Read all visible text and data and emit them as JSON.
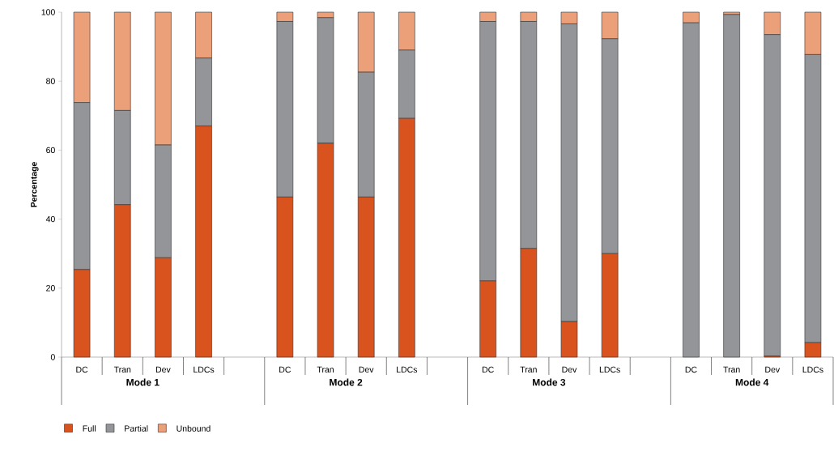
{
  "chart_data": {
    "type": "bar",
    "stacked": true,
    "ylabel": "Percentage",
    "categories": [
      "DC",
      "Tran",
      "Dev",
      "LDCs",
      null,
      "DC",
      "Tran",
      "Dev",
      "LDCs",
      null,
      "DC",
      "Tran",
      "Dev",
      "LDCs",
      null,
      "DC",
      "Tran",
      "Dev",
      "LDCs"
    ],
    "series": [
      {
        "name": "Full",
        "color": "#d9531e",
        "values": [
          25.4,
          44.2,
          28.8,
          67.0,
          null,
          46.4,
          62.0,
          46.4,
          69.2,
          null,
          22.1,
          31.5,
          10.3,
          30.0,
          null,
          0,
          0,
          0.3,
          4.2
        ]
      },
      {
        "name": "Partial",
        "color": "#939598",
        "values": [
          48.4,
          27.3,
          32.7,
          19.7,
          null,
          50.9,
          36.4,
          36.2,
          19.8,
          null,
          75.2,
          65.8,
          86.3,
          62.3,
          null,
          96.9,
          99.3,
          93.2,
          83.5
        ]
      },
      {
        "name": "Unbound",
        "color": "#eca07a",
        "values": [
          26.2,
          28.5,
          38.5,
          13.3,
          null,
          2.7,
          1.6,
          17.4,
          11.0,
          null,
          2.7,
          2.7,
          3.4,
          7.7,
          null,
          3.1,
          0.7,
          6.5,
          12.3
        ]
      }
    ],
    "ylim": [
      0,
      100
    ],
    "yticks": [
      0,
      20,
      40,
      60,
      80,
      100
    ],
    "legend": "bottom",
    "annotations": [
      "Mode 1",
      "Mode 2",
      "Mode 3",
      "Mode 4"
    ]
  }
}
